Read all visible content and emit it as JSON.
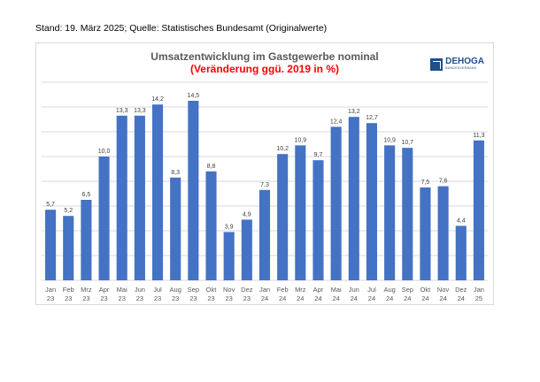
{
  "header_note": "Stand: 19. März 2025; Quelle: Statistisches Bundesamt (Originalwerte)",
  "logo": {
    "name": "DEHOGA",
    "sub": "BUNDESVERBAND"
  },
  "colors": {
    "bar": "#4472c4",
    "title": "#595959",
    "subtitle": "#ff0000",
    "logo": "#1f4e8c"
  },
  "chart_data": {
    "type": "bar",
    "title": "Umsatzentwicklung im Gastgewerbe nominal",
    "subtitle": "(Veränderung ggü. 2019 in %)",
    "categories": [
      [
        "Jan",
        "23"
      ],
      [
        "Feb",
        "23"
      ],
      [
        "Mrz",
        "23"
      ],
      [
        "Apr",
        "23"
      ],
      [
        "Mai",
        "23"
      ],
      [
        "Jun",
        "23"
      ],
      [
        "Jul",
        "23"
      ],
      [
        "Aug",
        "23"
      ],
      [
        "Sep",
        "23"
      ],
      [
        "Okt",
        "23"
      ],
      [
        "Nov",
        "23"
      ],
      [
        "Dez",
        "23"
      ],
      [
        "Jan",
        "24"
      ],
      [
        "Feb",
        "24"
      ],
      [
        "Mrz",
        "24"
      ],
      [
        "Apr",
        "24"
      ],
      [
        "Mai",
        "24"
      ],
      [
        "Jun",
        "24"
      ],
      [
        "Jul",
        "24"
      ],
      [
        "Aug",
        "24"
      ],
      [
        "Sep",
        "24"
      ],
      [
        "Okt",
        "24"
      ],
      [
        "Nov",
        "24"
      ],
      [
        "Dez",
        "24"
      ],
      [
        "Jan",
        "25"
      ]
    ],
    "values": [
      5.7,
      5.2,
      6.5,
      10.0,
      13.3,
      13.3,
      14.2,
      8.3,
      14.5,
      8.8,
      3.9,
      4.9,
      7.3,
      10.2,
      10.9,
      9.7,
      12.4,
      13.2,
      12.7,
      10.9,
      10.7,
      7.5,
      7.6,
      4.4,
      11.3
    ],
    "labels": [
      "5,7",
      "5,2",
      "6,5",
      "10,0",
      "13,3",
      "13,3",
      "14,2",
      "8,3",
      "14,5",
      "8,8",
      "3,9",
      "4,9",
      "7,3",
      "10,2",
      "10,9",
      "9,7",
      "12,4",
      "13,2",
      "12,7",
      "10,9",
      "10,7",
      "7,5",
      "7,6",
      "4,4",
      "11,3"
    ],
    "ylim": [
      0,
      16
    ],
    "grid": true,
    "legend": "none"
  }
}
